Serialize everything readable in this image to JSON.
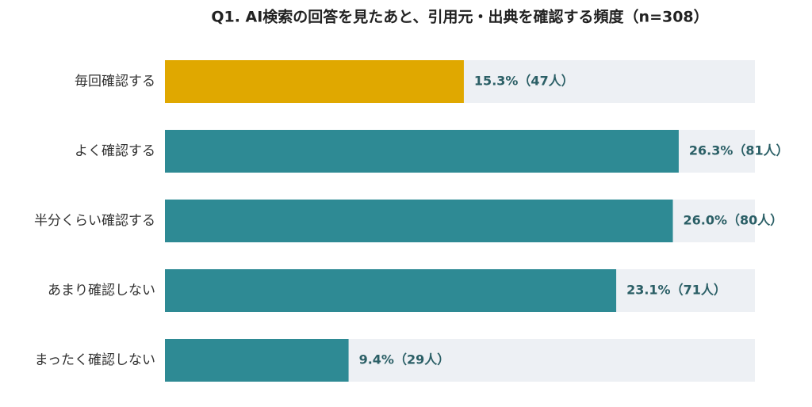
{
  "chart_data": {
    "type": "bar",
    "orientation": "horizontal",
    "title": "Q1. AI検索の回答を見たあと、引用元・出典を確認する頻度（n=308）",
    "categories": [
      "毎回確認する",
      "よく確認する",
      "半分くらい確認する",
      "あまり確認しない",
      "まったく確認しない"
    ],
    "values": [
      15.3,
      26.3,
      26.0,
      23.1,
      9.4
    ],
    "value_labels": [
      "15.3%（47人）",
      "26.3%（81人）",
      "26.0%（80人）",
      "23.1%（71人）",
      "9.4%（29人）"
    ],
    "colors": [
      "#e0a800",
      "#2e8a94",
      "#2e8a94",
      "#2e8a94",
      "#2e8a94"
    ],
    "track_color": "#edf0f4",
    "xlim": [
      0,
      30.2
    ]
  }
}
